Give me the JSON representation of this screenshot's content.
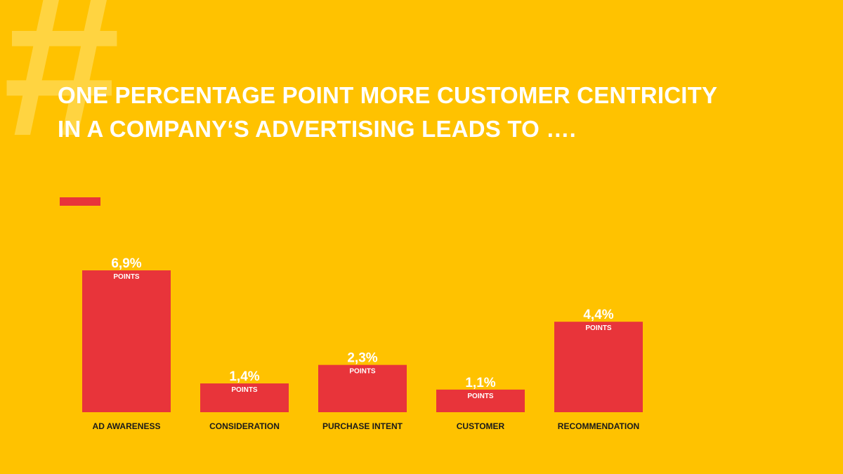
{
  "decoration": {
    "hash_symbol": "#"
  },
  "header": {
    "title_line1": "ONE PERCENTAGE POINT MORE CUSTOMER CENTRICITY",
    "title_line2": "IN A COMPANY‘S ADVERTISING LEADS TO  …."
  },
  "colors": {
    "background": "#FFC200",
    "bar": "#E8343A",
    "accent": "#E8343A",
    "text": "#FFFFFF"
  },
  "chart_data": {
    "type": "bar",
    "title": "",
    "categories": [
      "AD AWARENESS",
      "CONSIDERATION",
      "PURCHASE INTENT",
      "CUSTOMER",
      "RECOMMENDATION"
    ],
    "values": [
      6.9,
      1.4,
      2.3,
      1.1,
      4.4
    ],
    "value_labels": [
      "6,9%",
      "1,4%",
      "2,3%",
      "1,1%",
      "4,4%"
    ],
    "unit_label": "POINTS",
    "xlabel": "",
    "ylabel": "",
    "ylim": [
      0,
      6.9
    ],
    "grid": false
  }
}
